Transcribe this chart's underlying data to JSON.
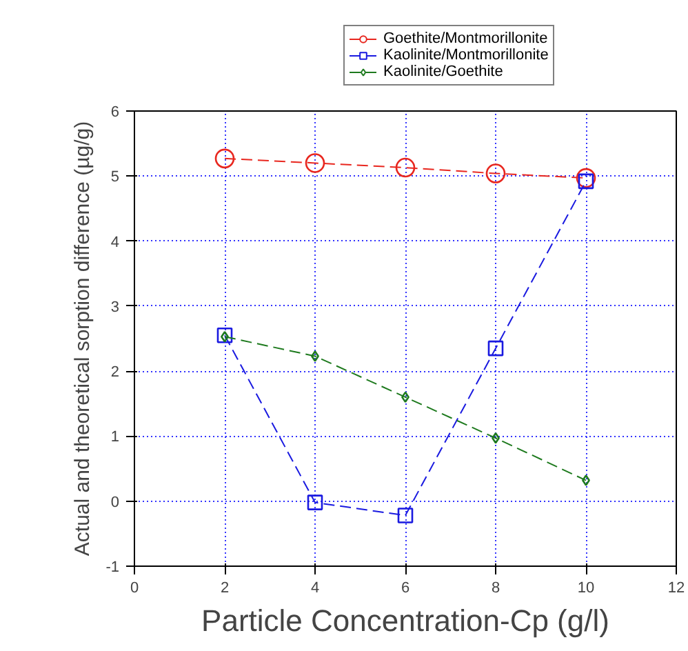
{
  "chart_data": {
    "type": "line",
    "xlabel": "Particle Concentration-Cp (g/l)",
    "ylabel": "Actual and theoretical sorption difference (µg/g)",
    "x": [
      2,
      4,
      6,
      8,
      10
    ],
    "series": [
      {
        "name": "Goethite/Montmorillonite",
        "color": "#e8271f",
        "values": [
          5.27,
          5.2,
          5.13,
          5.04,
          4.97
        ],
        "marker": "circle",
        "line_style": "dashed"
      },
      {
        "name": "Kaolinite/Montmorillonite",
        "color": "#1a1ae0",
        "values": [
          2.55,
          -0.02,
          -0.22,
          2.35,
          4.92
        ],
        "marker": "square",
        "line_style": "dashed"
      },
      {
        "name": "Kaolinite/Goethite",
        "color": "#1e7a1e",
        "values": [
          2.53,
          2.23,
          1.6,
          0.97,
          0.32
        ],
        "marker": "diamond",
        "line_style": "dashed"
      }
    ],
    "xlim": [
      0,
      12
    ],
    "xticks": [
      0,
      2,
      4,
      6,
      8,
      10,
      12
    ],
    "ylim": [
      -1,
      6
    ],
    "yticks": [
      -1,
      0,
      1,
      2,
      3,
      4,
      5,
      6
    ],
    "grid": true,
    "legend": "top"
  }
}
